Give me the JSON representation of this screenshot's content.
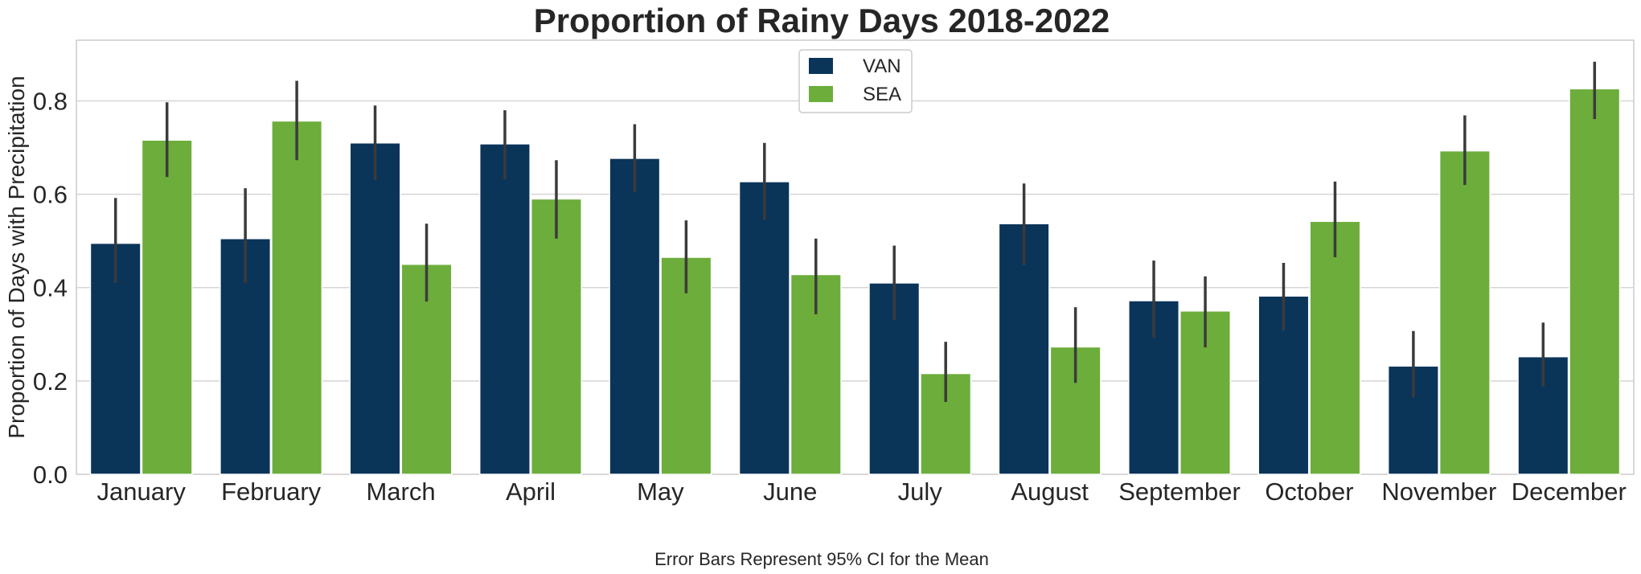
{
  "chart_data": {
    "type": "bar",
    "title": "Proportion of Rainy Days 2018-2022",
    "xlabel": "",
    "ylabel": "Proportion of Days with Precipitation",
    "caption": "Error Bars Represent 95% CI for the Mean",
    "categories": [
      "January",
      "February",
      "March",
      "April",
      "May",
      "June",
      "July",
      "August",
      "September",
      "October",
      "November",
      "December"
    ],
    "ylim": [
      0,
      0.93
    ],
    "yticks": [
      0.0,
      0.2,
      0.4,
      0.6,
      0.8
    ],
    "ytick_labels": [
      "0.0",
      "0.2",
      "0.4",
      "0.6",
      "0.8"
    ],
    "grid": "horizontal",
    "legend_position": "top-center",
    "series": [
      {
        "name": "VAN",
        "color": "#0b3459",
        "values": [
          0.495,
          0.505,
          0.71,
          0.708,
          0.677,
          0.627,
          0.41,
          0.537,
          0.372,
          0.382,
          0.232,
          0.252
        ],
        "ci_low": [
          0.41,
          0.41,
          0.63,
          0.632,
          0.605,
          0.545,
          0.33,
          0.448,
          0.292,
          0.308,
          0.165,
          0.188
        ],
        "ci_high": [
          0.592,
          0.613,
          0.79,
          0.78,
          0.75,
          0.71,
          0.49,
          0.623,
          0.458,
          0.453,
          0.307,
          0.325
        ]
      },
      {
        "name": "SEA",
        "color": "#6cad3b",
        "values": [
          0.716,
          0.757,
          0.45,
          0.59,
          0.465,
          0.428,
          0.216,
          0.273,
          0.35,
          0.542,
          0.693,
          0.826
        ],
        "ci_low": [
          0.637,
          0.673,
          0.37,
          0.505,
          0.388,
          0.343,
          0.155,
          0.196,
          0.272,
          0.465,
          0.62,
          0.761
        ],
        "ci_high": [
          0.797,
          0.843,
          0.537,
          0.673,
          0.544,
          0.505,
          0.284,
          0.358,
          0.424,
          0.627,
          0.769,
          0.884
        ]
      }
    ]
  }
}
